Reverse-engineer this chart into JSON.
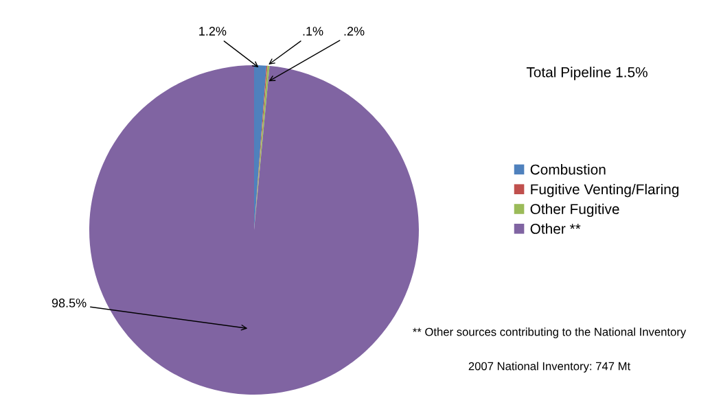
{
  "chart_data": {
    "type": "pie",
    "title": "Total Pipeline 1.5%",
    "categories": [
      "Combustion",
      "Fugitive Venting/Flaring",
      "Other Fugitive",
      "Other **"
    ],
    "values": [
      1.2,
      0.1,
      0.2,
      98.5
    ],
    "colors": [
      "#4f81bd",
      "#c0504d",
      "#9bbb59",
      "#8064a2"
    ],
    "value_labels": [
      "1.2%",
      ".1%",
      ".2%",
      "98.5%"
    ],
    "legend": "right",
    "annotations": [
      "** Other sources contributing to the National Inventory",
      "2007 National Inventory: 747 Mt"
    ]
  }
}
